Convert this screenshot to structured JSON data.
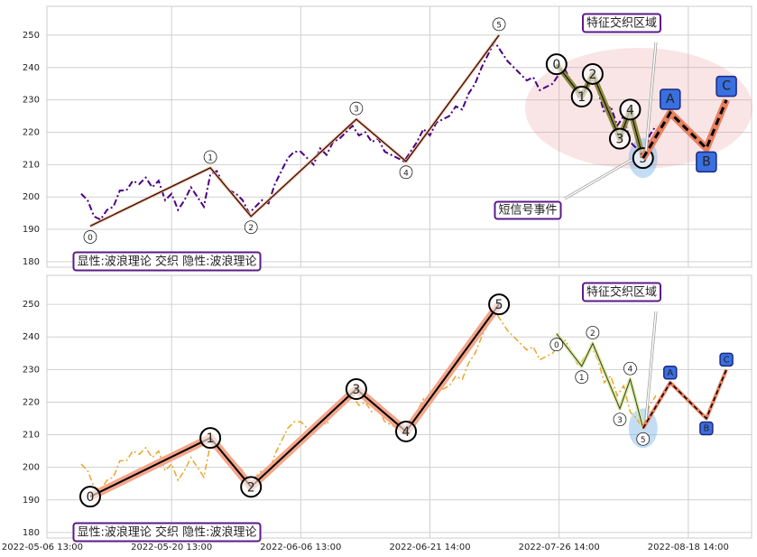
{
  "chart_data": [
    {
      "type": "line",
      "xlim": [
        0.7,
        109.8
      ],
      "ylim": [
        178.3,
        258.9
      ],
      "yticks": [
        180,
        190,
        200,
        210,
        220,
        230,
        240,
        250
      ],
      "x": [
        6,
        7,
        8,
        9,
        10,
        11,
        12,
        13,
        14,
        15,
        16,
        17,
        18,
        19,
        20,
        21,
        22,
        23,
        24,
        25,
        26,
        27,
        28,
        29,
        30,
        31,
        32,
        33,
        34,
        35,
        36,
        37,
        38,
        39,
        40,
        41,
        42,
        43,
        44,
        45,
        46,
        47,
        48,
        49,
        50,
        51,
        52,
        53,
        54,
        55,
        56,
        57,
        58,
        59,
        60,
        61,
        62,
        63,
        64,
        65,
        66,
        67,
        68,
        69,
        70,
        71,
        72,
        73,
        74,
        75,
        76,
        77,
        78,
        79,
        80,
        81,
        82,
        83,
        84,
        85,
        86,
        87,
        88,
        89,
        90,
        91,
        92,
        93,
        94,
        95
      ],
      "series": [
        {
          "color": "#4b0082",
          "values": [
            201,
            199,
            194,
            193,
            196,
            197,
            202,
            202,
            205,
            204,
            206,
            203,
            205,
            199,
            201,
            196,
            199,
            203,
            200,
            197,
            207,
            208,
            204,
            202,
            201,
            199,
            195,
            197,
            199,
            198,
            204,
            208,
            212,
            214,
            214,
            212,
            210,
            215,
            213,
            217,
            218,
            220,
            222,
            219,
            220,
            217,
            218,
            214,
            213,
            212,
            211,
            214,
            217,
            221,
            219,
            223,
            224,
            225,
            228,
            227,
            232,
            235,
            240,
            244,
            248,
            245,
            242,
            240,
            238,
            236,
            237,
            233,
            234,
            235,
            238,
            239,
            235,
            231,
            234,
            237,
            233,
            226,
            228,
            222,
            225,
            217,
            215,
            212,
            219,
            222
          ]
        }
      ],
      "waves": [
        {
          "x": [
            7.4,
            26,
            32.3,
            48.6,
            56.3,
            70.7
          ],
          "values": [
            191,
            209,
            194,
            224,
            211,
            250
          ],
          "labels": [
            "0",
            "1",
            "2",
            "3",
            "4",
            "5"
          ]
        },
        {
          "x": [
            79.6,
            83.5,
            85.2,
            89.4,
            91,
            93
          ],
          "values": [
            241,
            231,
            238,
            218,
            227,
            212
          ],
          "labels": [
            "0",
            "1",
            "2",
            "3",
            "4",
            "5"
          ]
        },
        {
          "x": [
            97.2,
            102.8,
            105.9
          ],
          "values": [
            226,
            215,
            230
          ],
          "labels": [
            "A",
            "B",
            "C"
          ]
        }
      ],
      "zone_label": "特征交织区域",
      "event_label": "短信号事件",
      "caption": "显性:波浪理论 交织 隐性:波浪理论"
    },
    {
      "type": "line",
      "xlim": [
        0.7,
        109.8
      ],
      "ylim": [
        178.3,
        258.9
      ],
      "yticks": [
        180,
        190,
        200,
        210,
        220,
        230,
        240,
        250
      ],
      "xticks": [
        {
          "value": 0,
          "label": "2022-05-06 13:00"
        },
        {
          "value": 20,
          "label": "2022-05-20 13:00"
        },
        {
          "value": 40,
          "label": "2022-06-06 13:00"
        },
        {
          "value": 60,
          "label": "2022-06-21 14:00"
        },
        {
          "value": 80,
          "label": "2022-07-26 14:00"
        },
        {
          "value": 100,
          "label": "2022-08-18 14:00"
        }
      ],
      "x": [
        6,
        7,
        8,
        9,
        10,
        11,
        12,
        13,
        14,
        15,
        16,
        17,
        18,
        19,
        20,
        21,
        22,
        23,
        24,
        25,
        26,
        27,
        28,
        29,
        30,
        31,
        32,
        33,
        34,
        35,
        36,
        37,
        38,
        39,
        40,
        41,
        42,
        43,
        44,
        45,
        46,
        47,
        48,
        49,
        50,
        51,
        52,
        53,
        54,
        55,
        56,
        57,
        58,
        59,
        60,
        61,
        62,
        63,
        64,
        65,
        66,
        67,
        68,
        69,
        70,
        71,
        72,
        73,
        74,
        75,
        76,
        77,
        78,
        79,
        80,
        81,
        82,
        83,
        84,
        85,
        86,
        87,
        88,
        89,
        90,
        91,
        92,
        93,
        94,
        95
      ],
      "series": [
        {
          "color": "#e8a62a",
          "values": [
            201,
            199,
            194,
            193,
            196,
            197,
            202,
            202,
            205,
            204,
            206,
            203,
            205,
            199,
            201,
            196,
            199,
            203,
            200,
            197,
            207,
            208,
            204,
            202,
            201,
            199,
            195,
            197,
            199,
            198,
            204,
            208,
            212,
            214,
            214,
            212,
            210,
            215,
            213,
            217,
            218,
            220,
            222,
            219,
            220,
            217,
            218,
            214,
            213,
            212,
            211,
            214,
            217,
            221,
            219,
            223,
            224,
            225,
            228,
            227,
            232,
            235,
            240,
            244,
            248,
            245,
            242,
            240,
            238,
            236,
            237,
            233,
            234,
            235,
            238,
            239,
            235,
            231,
            234,
            237,
            233,
            226,
            228,
            222,
            225,
            217,
            215,
            212,
            219,
            222
          ]
        }
      ],
      "waves": [
        {
          "x": [
            7.4,
            26,
            32.3,
            48.6,
            56.3,
            70.7
          ],
          "values": [
            191,
            209,
            194,
            224,
            211,
            250
          ],
          "labels": [
            "0",
            "1",
            "2",
            "3",
            "4",
            "5"
          ]
        },
        {
          "x": [
            79.6,
            83.5,
            85.2,
            89.4,
            91,
            93
          ],
          "values": [
            241,
            231,
            238,
            218,
            227,
            212
          ],
          "labels": [
            "0",
            "1",
            "2",
            "3",
            "4",
            "5"
          ]
        },
        {
          "x": [
            97.2,
            102.8,
            105.9
          ],
          "values": [
            226,
            215,
            230
          ],
          "labels": [
            "A",
            "B",
            "C"
          ]
        }
      ],
      "zone_label": "特征交织区域",
      "caption": "显性:波浪理论 交织 隐性:波浪理论"
    }
  ]
}
